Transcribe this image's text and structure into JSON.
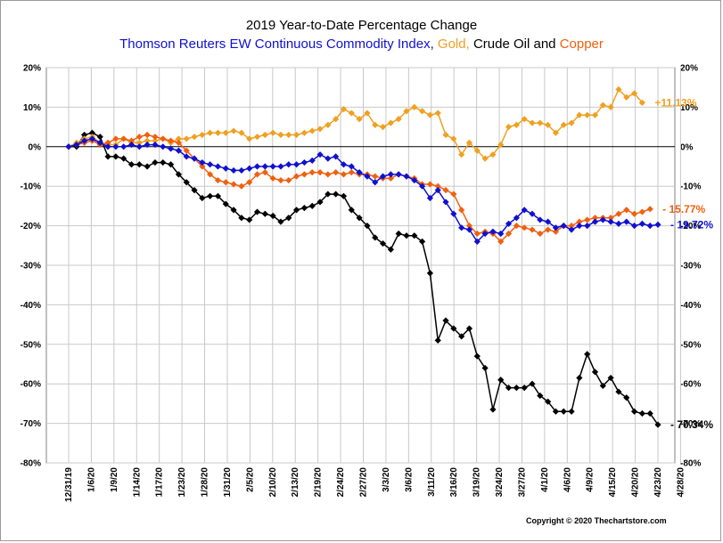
{
  "header": {
    "title": "2019 Year-to-Date Percentage Change",
    "legend_parts": [
      {
        "text": "Thomson Reuters EW Continuous Commodity Index, ",
        "color": "#1010d0"
      },
      {
        "text": "Gold, ",
        "color": "#f0a020"
      },
      {
        "text": "Crude Oil",
        "color": "#000000"
      },
      {
        "text": " and ",
        "color": "#000000"
      },
      {
        "text": "Copper",
        "color": "#f06010"
      }
    ]
  },
  "copyright": "Copyright © 2020 Thechartstore.com",
  "chart_data": {
    "type": "line",
    "title": "2019 Year-to-Date Percentage Change",
    "ylim": [
      -80,
      20
    ],
    "y_ticks": [
      "20%",
      "10%",
      "0%",
      "-10%",
      "-20%",
      "-30%",
      "-40%",
      "-50%",
      "-60%",
      "-70%",
      "-80%"
    ],
    "y_tick_values": [
      20,
      10,
      0,
      -10,
      -20,
      -30,
      -40,
      -50,
      -60,
      -70,
      -80
    ],
    "x_ticks": [
      "12/31/19",
      "1/6/20",
      "1/9/20",
      "1/14/20",
      "1/17/20",
      "1/23/20",
      "1/28/20",
      "1/31/20",
      "2/5/20",
      "2/10/20",
      "2/13/20",
      "2/19/20",
      "2/24/20",
      "2/27/20",
      "3/3/20",
      "3/6/20",
      "3/11/20",
      "3/16/20",
      "3/19/20",
      "3/24/20",
      "3/27/20",
      "4/1/20",
      "4/6/20",
      "4/9/20",
      "4/15/20",
      "4/20/20",
      "4/23/20",
      "4/28/20"
    ],
    "grid": true,
    "series": [
      {
        "name": "Thomson Reuters EW Continuous Commodity Index",
        "color": "#1010d0",
        "end_label": "- 19.72%",
        "values": [
          0,
          0.5,
          1.5,
          2,
          1,
          0,
          0,
          0,
          0.5,
          0,
          0.5,
          0.5,
          0,
          -0.5,
          -1,
          -2.5,
          -3,
          -4,
          -4.5,
          -5,
          -5.5,
          -6,
          -6,
          -5.5,
          -5,
          -5,
          -5,
          -5,
          -4.5,
          -4.5,
          -4,
          -3.5,
          -2,
          -3,
          -2.5,
          -4.5,
          -5,
          -6.5,
          -7.5,
          -9,
          -7.5,
          -7,
          -7,
          -7.5,
          -8.5,
          -10,
          -13,
          -11,
          -14,
          -17,
          -20.5,
          -21,
          -24,
          -22,
          -21.5,
          -22,
          -19.5,
          -18,
          -16,
          -17,
          -18.5,
          -19,
          -20.5,
          -20,
          -21,
          -20,
          -20,
          -19,
          -18.5,
          -19,
          -19.5,
          -19,
          -20,
          -19.5,
          -20,
          -19.72
        ]
      },
      {
        "name": "Gold",
        "color": "#f0a020",
        "end_label": "+11.13%",
        "values": [
          0,
          1,
          2,
          2.5,
          1,
          0.5,
          0.5,
          2,
          1,
          1,
          1.5,
          1.5,
          2,
          1,
          2,
          2,
          2.5,
          3,
          3.5,
          3.5,
          3.5,
          4,
          3.5,
          2,
          2.5,
          3,
          3.5,
          3,
          3,
          3,
          3.5,
          4,
          4.5,
          5.5,
          7,
          9.5,
          8.5,
          7,
          8.5,
          5.5,
          5,
          6,
          7,
          9,
          10,
          9,
          8,
          8.5,
          3,
          2,
          -2,
          1,
          -1,
          -3,
          -2,
          0.5,
          5,
          5.5,
          7,
          6,
          6,
          5.5,
          3.5,
          5.5,
          6,
          8,
          8,
          8,
          10.5,
          10,
          14.5,
          12.5,
          13.5,
          11.13
        ]
      },
      {
        "name": "Crude Oil",
        "color": "#000000",
        "end_label": "- 70.34%",
        "values": [
          0,
          0,
          3,
          3.5,
          2.5,
          -2.5,
          -2.5,
          -3,
          -4.5,
          -4.5,
          -5,
          -4,
          -4,
          -4.5,
          -7,
          -9,
          -11,
          -13,
          -12.5,
          -12.5,
          -14.5,
          -16,
          -18,
          -18.5,
          -16.5,
          -17,
          -17.5,
          -19,
          -18,
          -16,
          -15.5,
          -15,
          -14,
          -12,
          -12,
          -12.5,
          -16,
          -18,
          -20,
          -23,
          -24.5,
          -26,
          -22,
          -22.5,
          -22.5,
          -24,
          -32,
          -49,
          -44,
          -46,
          -48,
          -46,
          -53,
          -56,
          -66.5,
          -59,
          -61,
          -61,
          -61,
          -60,
          -63,
          -64.5,
          -67,
          -67,
          -67,
          -58.5,
          -52.5,
          -57,
          -60.5,
          -58.5,
          -62,
          -63.5,
          -67,
          -67.5,
          -67.5,
          -70.34
        ]
      },
      {
        "name": "Copper",
        "color": "#f06010",
        "end_label": "- 15.77%",
        "values": [
          0,
          0.5,
          1,
          1.5,
          0.5,
          1,
          2,
          2,
          1.5,
          2.5,
          3,
          2.5,
          2,
          1.5,
          1,
          -1,
          -3,
          -5,
          -7,
          -8.5,
          -9,
          -9.5,
          -10,
          -9,
          -7,
          -6.5,
          -8,
          -8.5,
          -8.5,
          -7.5,
          -7,
          -6.5,
          -6.5,
          -7,
          -6.5,
          -7,
          -6.5,
          -7,
          -7,
          -7.5,
          -8,
          -8,
          -7,
          -7.5,
          -8,
          -9.5,
          -9.5,
          -10,
          -11,
          -12,
          -16,
          -20,
          -22,
          -21.5,
          -22,
          -24,
          -22,
          -20,
          -20.5,
          -21,
          -22,
          -21,
          -21.5,
          -20,
          -20,
          -19,
          -18.5,
          -18,
          -18,
          -18,
          -17,
          -16,
          -17,
          -16.5,
          -15.77
        ]
      }
    ]
  }
}
